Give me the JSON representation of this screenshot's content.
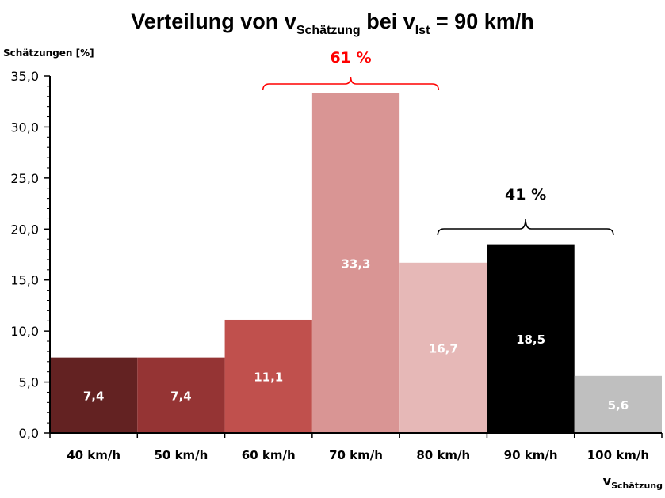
{
  "title": {
    "prefix": "Verteilung von v",
    "sub1": "Schätzung",
    "middle": " bei v",
    "sub2": "Ist",
    "suffix": " = 90 km/h"
  },
  "colors": {
    "bar_40": "#632222",
    "bar_50": "#953434",
    "bar_60": "#C0504D",
    "bar_70": "#D99594",
    "bar_80": "#E6B8B7",
    "bar_90": "#000000",
    "bar_100": "#BFBFBF",
    "group_61": "#FF0000",
    "group_41": "#000000"
  },
  "chart_data": {
    "type": "bar",
    "ylabel": "Schätzungen [%]",
    "xlabel_main": "v",
    "xlabel_sub": "Schätzung",
    "ylim": [
      0,
      35
    ],
    "yticks": [
      "0,0",
      "5,0",
      "10,0",
      "15,0",
      "20,0",
      "25,0",
      "30,0",
      "35,0"
    ],
    "categories": [
      "40 km/h",
      "50 km/h",
      "60 km/h",
      "70 km/h",
      "80 km/h",
      "90 km/h",
      "100 km/h"
    ],
    "values": [
      7.4,
      7.4,
      11.1,
      33.3,
      16.7,
      18.5,
      5.6
    ],
    "value_labels": [
      "7,4",
      "7,4",
      "11,1",
      "33,3",
      "16,7",
      "18,5",
      "5,6"
    ],
    "label_colors": [
      "#ffffff",
      "#ffffff",
      "#ffffff",
      "#ffffff",
      "#ffffff",
      "#ffffff",
      "#ffffff"
    ],
    "grid": false,
    "annotations": [
      {
        "label": "61 %",
        "from_category": "60 km/h",
        "to_category": "80 km/h",
        "color": "#FF0000"
      },
      {
        "label": "41 %",
        "from_category": "80 km/h",
        "to_category": "100 km/h",
        "color": "#000000"
      }
    ]
  }
}
